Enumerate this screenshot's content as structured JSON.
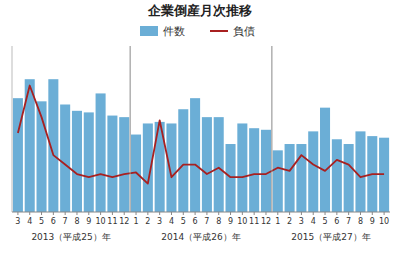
{
  "chart_data": {
    "type": "bar",
    "title": "企業倒産月次推移",
    "categories": [
      "3",
      "4",
      "5",
      "6",
      "7",
      "8",
      "9",
      "10",
      "11",
      "12",
      "1",
      "2",
      "3",
      "4",
      "5",
      "6",
      "7",
      "8",
      "9",
      "10",
      "11",
      "12",
      "1",
      "2",
      "3",
      "4",
      "5",
      "6",
      "7",
      "8",
      "9",
      "10"
    ],
    "category_groups": [
      {
        "label": "2013（平成25）年",
        "first": 0,
        "last": 9
      },
      {
        "label": "2014（平成26）年",
        "first": 10,
        "last": 21
      },
      {
        "label": "2015（平成27）年",
        "first": 22,
        "last": 31
      }
    ],
    "series": [
      {
        "name": "件数",
        "type": "bar",
        "color": "#6baed6",
        "values": [
          0.72,
          0.84,
          0.7,
          0.84,
          0.68,
          0.64,
          0.63,
          0.75,
          0.61,
          0.6,
          0.49,
          0.56,
          0.57,
          0.56,
          0.65,
          0.72,
          0.6,
          0.6,
          0.43,
          0.56,
          0.53,
          0.52,
          0.39,
          0.43,
          0.43,
          0.51,
          0.66,
          0.46,
          0.43,
          0.51,
          0.48,
          0.47
        ]
      },
      {
        "name": "負債",
        "type": "line",
        "color": "#a82020",
        "values": [
          0.5,
          0.8,
          0.6,
          0.36,
          0.3,
          0.24,
          0.22,
          0.24,
          0.22,
          0.24,
          0.25,
          0.18,
          0.58,
          0.22,
          0.3,
          0.3,
          0.24,
          0.28,
          0.22,
          0.22,
          0.24,
          0.24,
          0.28,
          0.26,
          0.36,
          0.3,
          0.26,
          0.33,
          0.3,
          0.22,
          0.24,
          0.24
        ]
      }
    ],
    "ylim": [
      0,
      1.05
    ],
    "yticks": [],
    "tick_labels": "x",
    "grid": false,
    "legend": "top"
  }
}
